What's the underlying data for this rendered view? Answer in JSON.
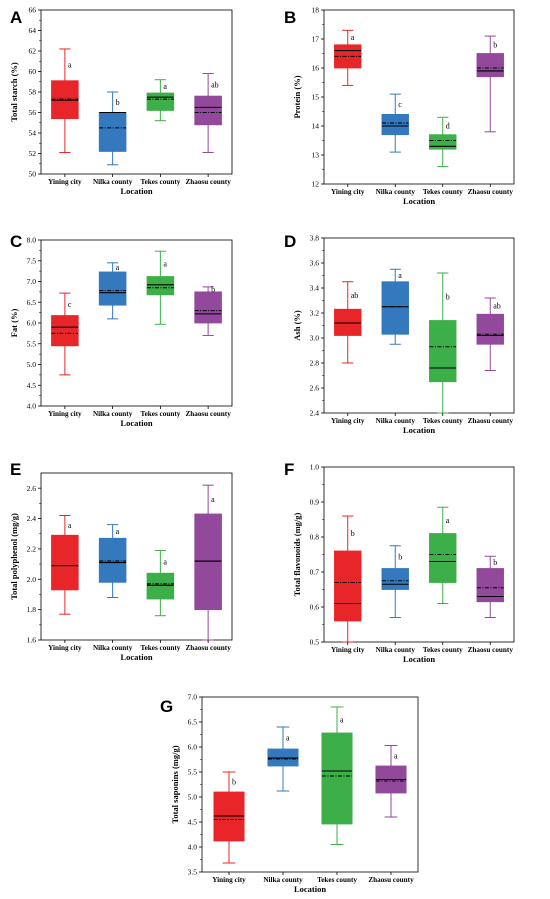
{
  "colors": [
    "#e8262a",
    "#3478bd",
    "#3daf49",
    "#92489b"
  ],
  "chart_data": [
    {
      "panel": "A",
      "type": "box",
      "ylabel": "Total starch (%)",
      "xlabel": "Location",
      "categories": [
        "Yining city",
        "Nilka county",
        "Tekes county",
        "Zhaosu county"
      ],
      "ylim": [
        50,
        66
      ],
      "yticks": [
        50,
        52,
        54,
        56,
        58,
        60,
        62,
        64,
        66
      ],
      "boxes": [
        {
          "min": 52.1,
          "q1": 55.4,
          "median": 57.2,
          "mean": 57.3,
          "q3": 59.1,
          "max": 62.2,
          "sig": "a"
        },
        {
          "min": 50.9,
          "q1": 52.2,
          "median": 56.0,
          "mean": 54.5,
          "q3": 56.0,
          "max": 58.0,
          "sig": "b"
        },
        {
          "min": 55.2,
          "q1": 56.2,
          "median": 57.5,
          "mean": 57.3,
          "q3": 57.9,
          "max": 59.2,
          "sig": "a"
        },
        {
          "min": 52.1,
          "q1": 54.8,
          "median": 56.5,
          "mean": 56.0,
          "q3": 57.6,
          "max": 59.8,
          "sig": "ab"
        }
      ]
    },
    {
      "panel": "B",
      "type": "box",
      "ylabel": "Protein (%)",
      "xlabel": "Location",
      "categories": [
        "Yining city",
        "Nilka county",
        "Tekes county",
        "Zhaosu county"
      ],
      "ylim": [
        12,
        18
      ],
      "yticks": [
        12,
        13,
        14,
        15,
        16,
        17,
        18
      ],
      "boxes": [
        {
          "min": 15.4,
          "q1": 16.0,
          "median": 16.6,
          "mean": 16.4,
          "q3": 16.8,
          "max": 17.3,
          "sig": "a"
        },
        {
          "min": 13.1,
          "q1": 13.7,
          "median": 14.0,
          "mean": 14.1,
          "q3": 14.4,
          "max": 15.1,
          "sig": "c"
        },
        {
          "min": 12.6,
          "q1": 13.2,
          "median": 13.3,
          "mean": 13.5,
          "q3": 13.7,
          "max": 14.3,
          "sig": "d"
        },
        {
          "min": 13.8,
          "q1": 15.7,
          "median": 15.9,
          "mean": 16.0,
          "q3": 16.5,
          "max": 17.1,
          "sig": "b"
        }
      ]
    },
    {
      "panel": "C",
      "type": "box",
      "ylabel": "Fat (%)",
      "xlabel": "Location",
      "categories": [
        "Yining city",
        "Nilka county",
        "Tekes county",
        "Zhaosu county"
      ],
      "ylim": [
        4.0,
        8.0
      ],
      "yticks": [
        4.0,
        4.5,
        5.0,
        5.5,
        6.0,
        6.5,
        7.0,
        7.5,
        8.0
      ],
      "boxes": [
        {
          "min": 4.75,
          "q1": 5.45,
          "median": 5.9,
          "mean": 5.75,
          "q3": 6.18,
          "max": 6.72,
          "sig": "c"
        },
        {
          "min": 6.1,
          "q1": 6.43,
          "median": 6.73,
          "mean": 6.78,
          "q3": 7.23,
          "max": 7.45,
          "sig": "a"
        },
        {
          "min": 5.97,
          "q1": 6.68,
          "median": 6.92,
          "mean": 6.85,
          "q3": 7.12,
          "max": 7.73,
          "sig": "a"
        },
        {
          "min": 5.7,
          "q1": 6.0,
          "median": 6.22,
          "mean": 6.3,
          "q3": 6.75,
          "max": 6.87,
          "sig": "b"
        }
      ]
    },
    {
      "panel": "D",
      "type": "box",
      "ylabel": "Ash (%)",
      "xlabel": "Location",
      "categories": [
        "Yining city",
        "Nilka county",
        "Tekes county",
        "Zhaosu county"
      ],
      "ylim": [
        2.4,
        3.8
      ],
      "yticks": [
        2.4,
        2.6,
        2.8,
        3.0,
        3.2,
        3.4,
        3.6,
        3.8
      ],
      "boxes": [
        {
          "min": 2.8,
          "q1": 3.02,
          "median": 3.12,
          "mean": 3.12,
          "q3": 3.23,
          "max": 3.45,
          "sig": "ab"
        },
        {
          "min": 2.95,
          "q1": 3.03,
          "median": 3.25,
          "mean": 3.25,
          "q3": 3.45,
          "max": 3.55,
          "sig": "a"
        },
        {
          "min": 2.4,
          "q1": 2.65,
          "median": 2.76,
          "mean": 2.93,
          "q3": 3.14,
          "max": 3.52,
          "sig": "b"
        },
        {
          "min": 2.74,
          "q1": 2.95,
          "median": 3.02,
          "mean": 3.03,
          "q3": 3.19,
          "max": 3.32,
          "sig": "ab"
        }
      ]
    },
    {
      "panel": "E",
      "type": "box",
      "ylabel": "Total polyphenol (mg/g)",
      "xlabel": "Location",
      "categories": [
        "Yining city",
        "Nilka county",
        "Tekes county",
        "Zhaosu county"
      ],
      "ylim": [
        1.6,
        2.7
      ],
      "yticks": [
        1.6,
        1.8,
        2.0,
        2.2,
        2.4,
        2.6
      ],
      "boxes": [
        {
          "min": 1.77,
          "q1": 1.93,
          "median": 2.09,
          "mean": 2.09,
          "q3": 2.29,
          "max": 2.42,
          "sig": "a"
        },
        {
          "min": 1.88,
          "q1": 1.98,
          "median": 2.11,
          "mean": 2.12,
          "q3": 2.27,
          "max": 2.36,
          "sig": "a"
        },
        {
          "min": 1.76,
          "q1": 1.87,
          "median": 1.96,
          "mean": 1.97,
          "q3": 2.04,
          "max": 2.19,
          "sig": "a"
        },
        {
          "min": 1.6,
          "q1": 1.8,
          "median": 2.12,
          "mean": 2.12,
          "q3": 2.43,
          "max": 2.62,
          "sig": "a"
        }
      ]
    },
    {
      "panel": "F",
      "type": "box",
      "ylabel": "Total flavonoids (mg/g)",
      "xlabel": "Location",
      "categories": [
        "Yining city",
        "Nilka county",
        "Tekes county",
        "Zhaosu county"
      ],
      "ylim": [
        0.5,
        1.0
      ],
      "yticks": [
        0.5,
        0.6,
        0.7,
        0.8,
        0.9,
        1.0
      ],
      "boxes": [
        {
          "min": 0.5,
          "q1": 0.56,
          "median": 0.61,
          "mean": 0.67,
          "q3": 0.76,
          "max": 0.86,
          "sig": "b"
        },
        {
          "min": 0.57,
          "q1": 0.65,
          "median": 0.665,
          "mean": 0.675,
          "q3": 0.71,
          "max": 0.775,
          "sig": "b"
        },
        {
          "min": 0.61,
          "q1": 0.67,
          "median": 0.73,
          "mean": 0.75,
          "q3": 0.81,
          "max": 0.885,
          "sig": "a"
        },
        {
          "min": 0.57,
          "q1": 0.615,
          "median": 0.63,
          "mean": 0.655,
          "q3": 0.71,
          "max": 0.745,
          "sig": "b"
        }
      ]
    },
    {
      "panel": "G",
      "type": "box",
      "ylabel": "Total saponins (mg/g)",
      "xlabel": "Location",
      "categories": [
        "Yining city",
        "Nilka county",
        "Tekes county",
        "Zhaosu county"
      ],
      "ylim": [
        3.5,
        7.0
      ],
      "yticks": [
        3.5,
        4.0,
        4.5,
        5.0,
        5.5,
        6.0,
        6.5,
        7.0
      ],
      "boxes": [
        {
          "min": 3.68,
          "q1": 4.12,
          "median": 4.62,
          "mean": 4.55,
          "q3": 5.1,
          "max": 5.5,
          "sig": "b"
        },
        {
          "min": 5.12,
          "q1": 5.62,
          "median": 5.78,
          "mean": 5.76,
          "q3": 5.96,
          "max": 6.4,
          "sig": "a"
        },
        {
          "min": 4.05,
          "q1": 4.46,
          "median": 5.52,
          "mean": 5.42,
          "q3": 6.28,
          "max": 6.8,
          "sig": "a"
        },
        {
          "min": 4.6,
          "q1": 5.08,
          "median": 5.35,
          "mean": 5.32,
          "q3": 5.62,
          "max": 6.03,
          "sig": "a"
        }
      ]
    }
  ]
}
